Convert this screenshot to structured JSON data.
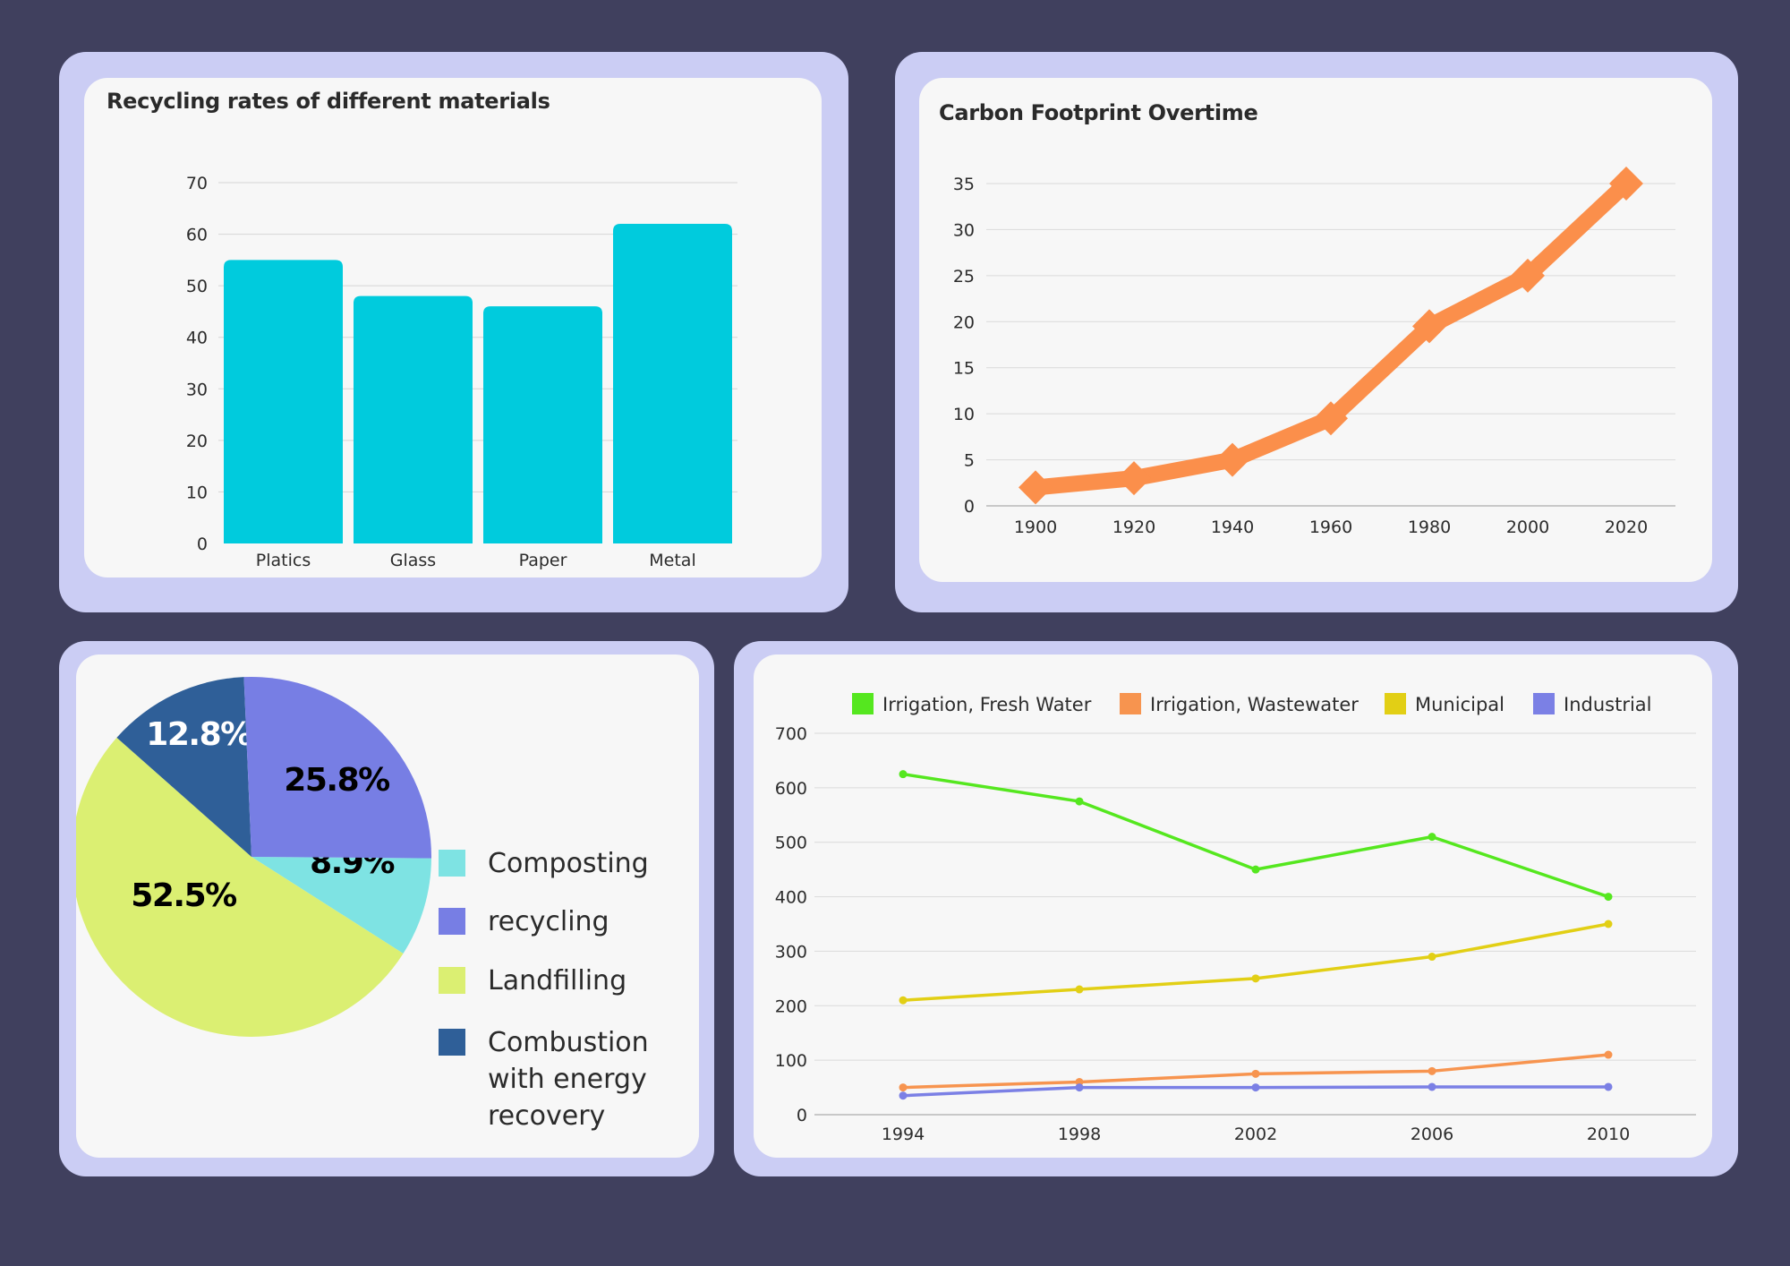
{
  "colors": {
    "background": "#40405e",
    "panel": "#cbcdf4",
    "card": "#f7f7f7",
    "bar": "#00cbdd",
    "carbon_line": "#fb8f4b",
    "composting": "#7ee3e3",
    "recycling": "#777ee4",
    "landfilling": "#dbef72",
    "combustion": "#2f5f98",
    "fresh_water": "#55e71f",
    "wastewater": "#f7944f",
    "municipal": "#e2cf15",
    "industrial": "#7b80e5"
  },
  "chart_data": [
    {
      "type": "bar",
      "title": "Recycling rates of different materials",
      "categories": [
        "Platics",
        "Glass",
        "Paper",
        "Metal"
      ],
      "values": [
        55,
        48,
        46,
        62
      ],
      "ylim": [
        0,
        70
      ],
      "yticks": [
        0,
        10,
        20,
        30,
        40,
        50,
        60,
        70
      ],
      "grid": true
    },
    {
      "type": "line",
      "title": "Carbon Footprint Overtime",
      "x": [
        1900,
        1920,
        1940,
        1960,
        1980,
        2000,
        2020
      ],
      "values": [
        2,
        3,
        5,
        9.5,
        19.5,
        25,
        35
      ],
      "xticks": [
        "1900",
        "1920",
        "1940",
        "1960",
        "1980",
        "2000",
        "2020"
      ],
      "ylim": [
        0,
        35
      ],
      "yticks": [
        0,
        5,
        10,
        15,
        20,
        25,
        30,
        35
      ],
      "marker": "diamond",
      "grid": true
    },
    {
      "type": "pie",
      "slices": [
        {
          "name": "Composting",
          "value": 8.9,
          "label": "8.9%"
        },
        {
          "name": "Landfilling",
          "value": 52.5,
          "label": "52.5%"
        },
        {
          "name": "Combustion with energy recovery",
          "legend_lines": [
            "Combustion",
            "with energy",
            "recovery"
          ],
          "value": 12.8,
          "label": "12.8%"
        },
        {
          "name": "recycling",
          "value": 25.8,
          "label": "25.8%"
        }
      ],
      "legend_order": [
        "Composting",
        "recycling",
        "Landfilling",
        "Combustion with energy recovery"
      ],
      "legend_placement": "right"
    },
    {
      "type": "line",
      "x": [
        1994,
        1998,
        2002,
        2006,
        2010
      ],
      "xticks": [
        "1994",
        "1998",
        "2002",
        "2006",
        "2010"
      ],
      "ylim": [
        0,
        700
      ],
      "yticks": [
        0,
        100,
        200,
        300,
        400,
        500,
        600,
        700
      ],
      "legend_placement": "top",
      "grid": true,
      "series": [
        {
          "name": "Irrigation, Fresh Water",
          "values": [
            625,
            575,
            450,
            510,
            400
          ]
        },
        {
          "name": "Irrigation, Wastewater",
          "values": [
            50,
            60,
            75,
            80,
            110
          ]
        },
        {
          "name": "Municipal",
          "values": [
            210,
            230,
            250,
            290,
            350
          ]
        },
        {
          "name": "Industrial",
          "values": [
            35,
            50,
            50,
            51,
            51
          ]
        }
      ]
    }
  ]
}
